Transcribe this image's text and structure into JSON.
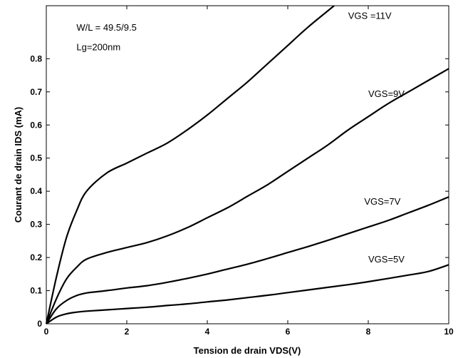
{
  "chart_data": {
    "type": "line",
    "title": "",
    "xlabel": "Tension de drain VDS(V)",
    "ylabel": "Courant de drain IDS (mA)",
    "xlim": [
      0,
      10
    ],
    "ylim": [
      0,
      0.96
    ],
    "xticks": [
      0,
      2,
      4,
      6,
      8,
      10
    ],
    "yticks": [
      0,
      0.1,
      0.2,
      0.3,
      0.4,
      0.5,
      0.6,
      0.7,
      0.8
    ],
    "grid": false,
    "annotations": [
      {
        "text": "W/L = 49.5/9.5",
        "x": 0.75,
        "y": 0.885
      },
      {
        "text": "Lg=200nm",
        "x": 0.75,
        "y": 0.825
      }
    ],
    "series": [
      {
        "name": "VGS =11V",
        "label_at": [
          7.5,
          0.92
        ],
        "x": [
          0,
          0.25,
          0.5,
          0.75,
          1.0,
          1.5,
          2.0,
          2.5,
          3.0,
          3.5,
          4.0,
          4.5,
          5.0,
          5.5,
          6.0,
          6.5,
          7.0,
          7.15
        ],
        "y": [
          0.0,
          0.14,
          0.26,
          0.34,
          0.4,
          0.455,
          0.485,
          0.515,
          0.545,
          0.585,
          0.63,
          0.68,
          0.73,
          0.785,
          0.84,
          0.895,
          0.945,
          0.96
        ]
      },
      {
        "name": "VGS=9V",
        "label_at": [
          8.0,
          0.685
        ],
        "x": [
          0,
          0.25,
          0.5,
          0.75,
          1.0,
          1.5,
          2.0,
          2.5,
          3.0,
          3.5,
          4.0,
          4.5,
          5.0,
          5.5,
          6.0,
          6.5,
          7.0,
          7.5,
          8.0,
          8.5,
          9.0,
          9.5,
          10.0
        ],
        "y": [
          0.0,
          0.075,
          0.135,
          0.17,
          0.195,
          0.215,
          0.23,
          0.245,
          0.265,
          0.29,
          0.32,
          0.35,
          0.385,
          0.42,
          0.46,
          0.5,
          0.54,
          0.585,
          0.625,
          0.665,
          0.7,
          0.735,
          0.77
        ]
      },
      {
        "name": "VGS=7V",
        "label_at": [
          7.9,
          0.36
        ],
        "x": [
          0,
          0.25,
          0.5,
          0.75,
          1.0,
          1.5,
          2.0,
          2.5,
          3.0,
          3.5,
          4.0,
          4.5,
          5.0,
          5.5,
          6.0,
          6.5,
          7.0,
          7.5,
          8.0,
          8.5,
          9.0,
          9.5,
          10.0
        ],
        "y": [
          0.0,
          0.045,
          0.07,
          0.085,
          0.093,
          0.1,
          0.108,
          0.115,
          0.125,
          0.137,
          0.15,
          0.165,
          0.18,
          0.197,
          0.215,
          0.233,
          0.252,
          0.272,
          0.292,
          0.312,
          0.335,
          0.358,
          0.383
        ]
      },
      {
        "name": "VGS=5V",
        "label_at": [
          8.0,
          0.185
        ],
        "x": [
          0,
          0.25,
          0.5,
          0.75,
          1.0,
          1.5,
          2.0,
          2.5,
          3.0,
          3.5,
          4.0,
          4.5,
          5.0,
          5.5,
          6.0,
          6.5,
          7.0,
          7.5,
          8.0,
          8.5,
          9.0,
          9.5,
          10.0
        ],
        "y": [
          0.0,
          0.02,
          0.03,
          0.035,
          0.038,
          0.042,
          0.046,
          0.05,
          0.055,
          0.06,
          0.066,
          0.072,
          0.079,
          0.086,
          0.094,
          0.102,
          0.11,
          0.118,
          0.127,
          0.137,
          0.147,
          0.158,
          0.178
        ]
      }
    ]
  }
}
